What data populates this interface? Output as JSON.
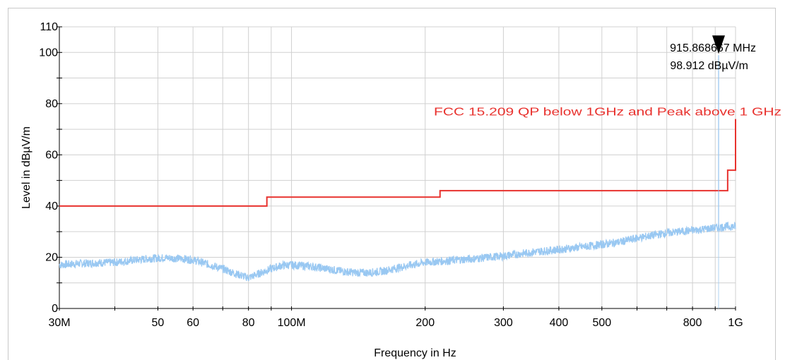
{
  "chart_data": {
    "type": "line",
    "xlabel": "Frequency in Hz",
    "ylabel": "Level in dBµV/m",
    "x_scale": "log",
    "xlim": [
      30000000,
      1000000000
    ],
    "ylim": [
      0,
      110
    ],
    "grid": true,
    "x_ticks": [
      {
        "value": 30000000,
        "label": "30M"
      },
      {
        "value": 50000000,
        "label": "50"
      },
      {
        "value": 60000000,
        "label": "60"
      },
      {
        "value": 80000000,
        "label": "80"
      },
      {
        "value": 100000000,
        "label": "100M"
      },
      {
        "value": 200000000,
        "label": "200"
      },
      {
        "value": 300000000,
        "label": "300"
      },
      {
        "value": 400000000,
        "label": "400"
      },
      {
        "value": 500000000,
        "label": "500"
      },
      {
        "value": 800000000,
        "label": "800"
      },
      {
        "value": 1000000000,
        "label": "1G"
      }
    ],
    "x_minor_ticks": [
      40000000,
      70000000,
      90000000,
      600000000,
      700000000,
      900000000
    ],
    "y_ticks": [
      {
        "value": 0,
        "label": "0"
      },
      {
        "value": 20,
        "label": "20"
      },
      {
        "value": 40,
        "label": "40"
      },
      {
        "value": 60,
        "label": "60"
      },
      {
        "value": 80,
        "label": "80"
      },
      {
        "value": 100,
        "label": "100"
      },
      {
        "value": 110,
        "label": "110"
      }
    ],
    "series": [
      {
        "color": "#99c8f2",
        "x": [
          30000000,
          33000000,
          36000000,
          40000000,
          44000000,
          48000000,
          52000000,
          56000000,
          60000000,
          65000000,
          70000000,
          75000000,
          80000000,
          85000000,
          90000000,
          95000000,
          100000000,
          110000000,
          120000000,
          130000000,
          140000000,
          150000000,
          160000000,
          170000000,
          180000000,
          200000000,
          230000000,
          260000000,
          300000000,
          350000000,
          400000000,
          450000000,
          500000000,
          550000000,
          600000000,
          650000000,
          700000000,
          750000000,
          800000000,
          850000000,
          900000000,
          915868667,
          950000000,
          1000000000
        ],
        "y": [
          17,
          17.5,
          17.8,
          18,
          18.8,
          19.5,
          19.8,
          19.5,
          19,
          17.2,
          15.5,
          13.5,
          12,
          13.8,
          15.5,
          16.8,
          17,
          16.5,
          15.5,
          14.5,
          14,
          14,
          14.5,
          15.5,
          16.5,
          18,
          18.8,
          19.5,
          20.5,
          22,
          23,
          24,
          25,
          26,
          27.5,
          28.5,
          29.5,
          30,
          30.5,
          31,
          31.5,
          98.912,
          32,
          32
        ]
      },
      {
        "name": "FCC 15.209 QP below 1GHz and Peak above 1 GHz",
        "color": "#e8322e",
        "step": true,
        "x": [
          30000000,
          88000000,
          88000000,
          216000000,
          216000000,
          960000000,
          960000000,
          1000000000,
          1000000000
        ],
        "y": [
          40,
          40,
          43.5,
          43.5,
          46,
          46,
          54,
          54,
          74
        ]
      }
    ],
    "annotations": [
      {
        "type": "marker",
        "x": 915868667,
        "y": 98.912,
        "freq_text": "915.868667 MHz",
        "level_text": "98.912 dBµV/m"
      },
      {
        "type": "limit_label",
        "text": "FCC 15.209 QP below 1GHz and Peak above 1 GHz",
        "color": "#e8322e"
      }
    ]
  }
}
